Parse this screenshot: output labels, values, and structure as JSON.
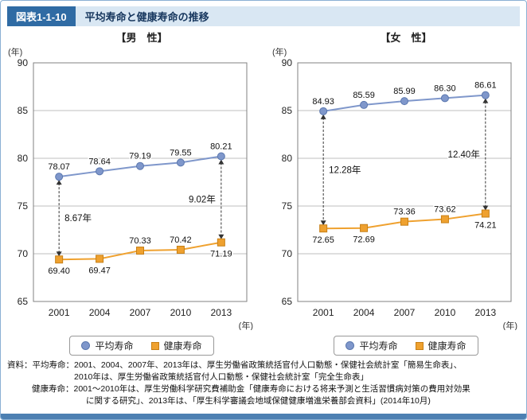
{
  "header": {
    "badge": "図表1-1-10",
    "title": "平均寿命と健康寿命の推移"
  },
  "colors": {
    "accent_dark": "#2f6ba4",
    "accent_light": "#d9e7f3",
    "title_text": "#17375e",
    "border_blue": "#8ab0d4",
    "bar_blue": "#4d80b2",
    "life_line": "#7f97cb",
    "life_edge": "#5a77ae",
    "healthy_line": "#efa12f",
    "healthy_edge": "#c77f15"
  },
  "legend": {
    "series1": "平均寿命",
    "series2": "健康寿命"
  },
  "chart_data": [
    {
      "type": "line",
      "title": "【男　性】",
      "unit_y": "(年)",
      "unit_x": "(年)",
      "x": [
        2001,
        2004,
        2007,
        2010,
        2013
      ],
      "ylim": [
        65,
        90
      ],
      "yticks": [
        65,
        70,
        75,
        80,
        85,
        90
      ],
      "grid": true,
      "series": [
        {
          "name": "平均寿命",
          "color_key": "life",
          "marker": "circle",
          "values": [
            78.07,
            78.64,
            79.19,
            79.55,
            80.21
          ],
          "label_pos": [
            "above",
            "above",
            "above",
            "above",
            "above"
          ]
        },
        {
          "name": "健康寿命",
          "color_key": "healthy",
          "marker": "square",
          "values": [
            69.4,
            69.47,
            70.33,
            70.42,
            71.19
          ],
          "label_pos": [
            "below",
            "below",
            "above",
            "above",
            "below"
          ]
        }
      ],
      "annotations": [
        {
          "x_index": 0,
          "label": "8.67年",
          "side": "right"
        },
        {
          "x_index": 4,
          "label": "9.02年",
          "side": "left"
        }
      ]
    },
    {
      "type": "line",
      "title": "【女　性】",
      "unit_y": "(年)",
      "unit_x": "(年)",
      "x": [
        2001,
        2004,
        2007,
        2010,
        2013
      ],
      "ylim": [
        65,
        90
      ],
      "yticks": [
        65,
        70,
        75,
        80,
        85,
        90
      ],
      "grid": true,
      "series": [
        {
          "name": "平均寿命",
          "color_key": "life",
          "marker": "circle",
          "values": [
            84.93,
            85.59,
            85.99,
            86.3,
            86.61
          ],
          "label_pos": [
            "above",
            "above",
            "above",
            "above",
            "above"
          ]
        },
        {
          "name": "健康寿命",
          "color_key": "healthy",
          "marker": "square",
          "values": [
            72.65,
            72.69,
            73.36,
            73.62,
            74.21
          ],
          "label_pos": [
            "below",
            "below",
            "above",
            "above",
            "below"
          ]
        }
      ],
      "annotations": [
        {
          "x_index": 0,
          "label": "12.28年",
          "side": "right"
        },
        {
          "x_index": 4,
          "label": "12.40年",
          "side": "left"
        }
      ]
    }
  ],
  "footer": {
    "lines": [
      "資料：平均寿命：2001、2004、2007年、2013年は、厚生労働省政策統括官付人口動態・保健社会統計室「簡易生命表」、",
      "2010年は、厚生労働省政策統括官付人口動態・保健社会統計室「完全生命表」",
      "健康寿命：2001～2010年は、厚生労働科学研究費補助金「健康寿命における将来予測と生活習慣病対策の費用対効果",
      "に関する研究」、2013年は、「厚生科学審議会地域保健健康増進栄養部会資料」(2014年10月)"
    ]
  }
}
